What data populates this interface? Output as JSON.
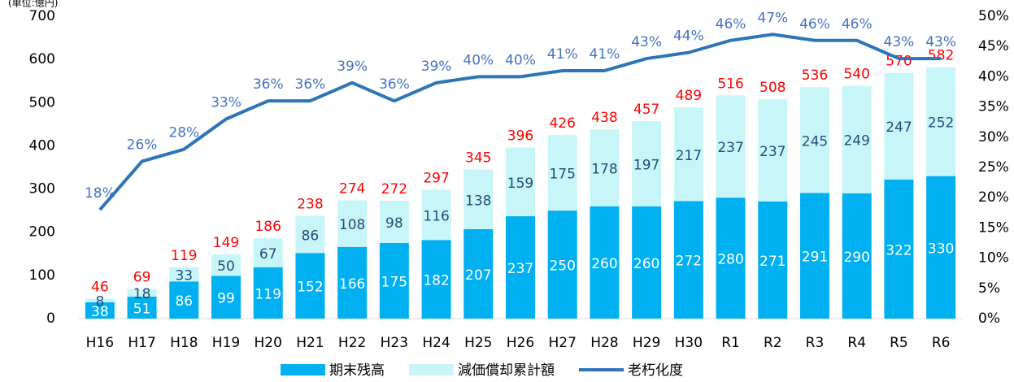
{
  "chart_data": {
    "type": "bar",
    "unit_label": "(単位:億円)",
    "categories": [
      "H16",
      "H17",
      "H18",
      "H19",
      "H20",
      "H21",
      "H22",
      "H23",
      "H24",
      "H25",
      "H26",
      "H27",
      "H28",
      "H29",
      "H30",
      "R1",
      "R2",
      "R3",
      "R4",
      "R5",
      "R6"
    ],
    "series": [
      {
        "name": "期末残高",
        "color": "#00b0f0",
        "values": [
          38,
          51,
          86,
          99,
          119,
          152,
          166,
          175,
          182,
          207,
          237,
          250,
          260,
          260,
          272,
          280,
          271,
          291,
          290,
          322,
          330
        ]
      },
      {
        "name": "減価償却累計額",
        "color": "#c8f6f8",
        "values": [
          8,
          18,
          33,
          50,
          67,
          86,
          108,
          98,
          116,
          138,
          159,
          175,
          178,
          197,
          217,
          237,
          237,
          245,
          249,
          247,
          252
        ]
      },
      {
        "name": "老朽化度",
        "color": "#2e75b6",
        "type": "line",
        "axis": "y2",
        "values": [
          18,
          26,
          28,
          33,
          36,
          36,
          39,
          36,
          39,
          40,
          40,
          41,
          41,
          43,
          44,
          46,
          47,
          46,
          46,
          43,
          43
        ],
        "value_labels": [
          "18%",
          "26%",
          "28%",
          "33%",
          "36%",
          "36%",
          "39%",
          "36%",
          "39%",
          "40%",
          "40%",
          "41%",
          "41%",
          "43%",
          "44%",
          "46%",
          "47%",
          "46%",
          "46%",
          "43%",
          "43%"
        ]
      }
    ],
    "totals": [
      46,
      69,
      119,
      149,
      186,
      238,
      274,
      272,
      297,
      345,
      396,
      426,
      438,
      457,
      489,
      516,
      508,
      536,
      540,
      570,
      582
    ],
    "ylim": [
      0,
      700
    ],
    "yticks": [
      0,
      100,
      200,
      300,
      400,
      500,
      600,
      700
    ],
    "y2lim": [
      0,
      50
    ],
    "y2ticks": [
      {
        "value": 0,
        "label": "0%"
      },
      {
        "value": 5,
        "label": "5%"
      },
      {
        "value": 10,
        "label": "10%"
      },
      {
        "value": 15,
        "label": "15%"
      },
      {
        "value": 20,
        "label": "20%"
      },
      {
        "value": 25,
        "label": "25%"
      },
      {
        "value": 30,
        "label": "30%"
      },
      {
        "value": 35,
        "label": "35%"
      },
      {
        "value": 40,
        "label": "40%"
      },
      {
        "value": 45,
        "label": "45%"
      },
      {
        "value": 50,
        "label": "50%"
      }
    ],
    "legend": "bottom"
  }
}
